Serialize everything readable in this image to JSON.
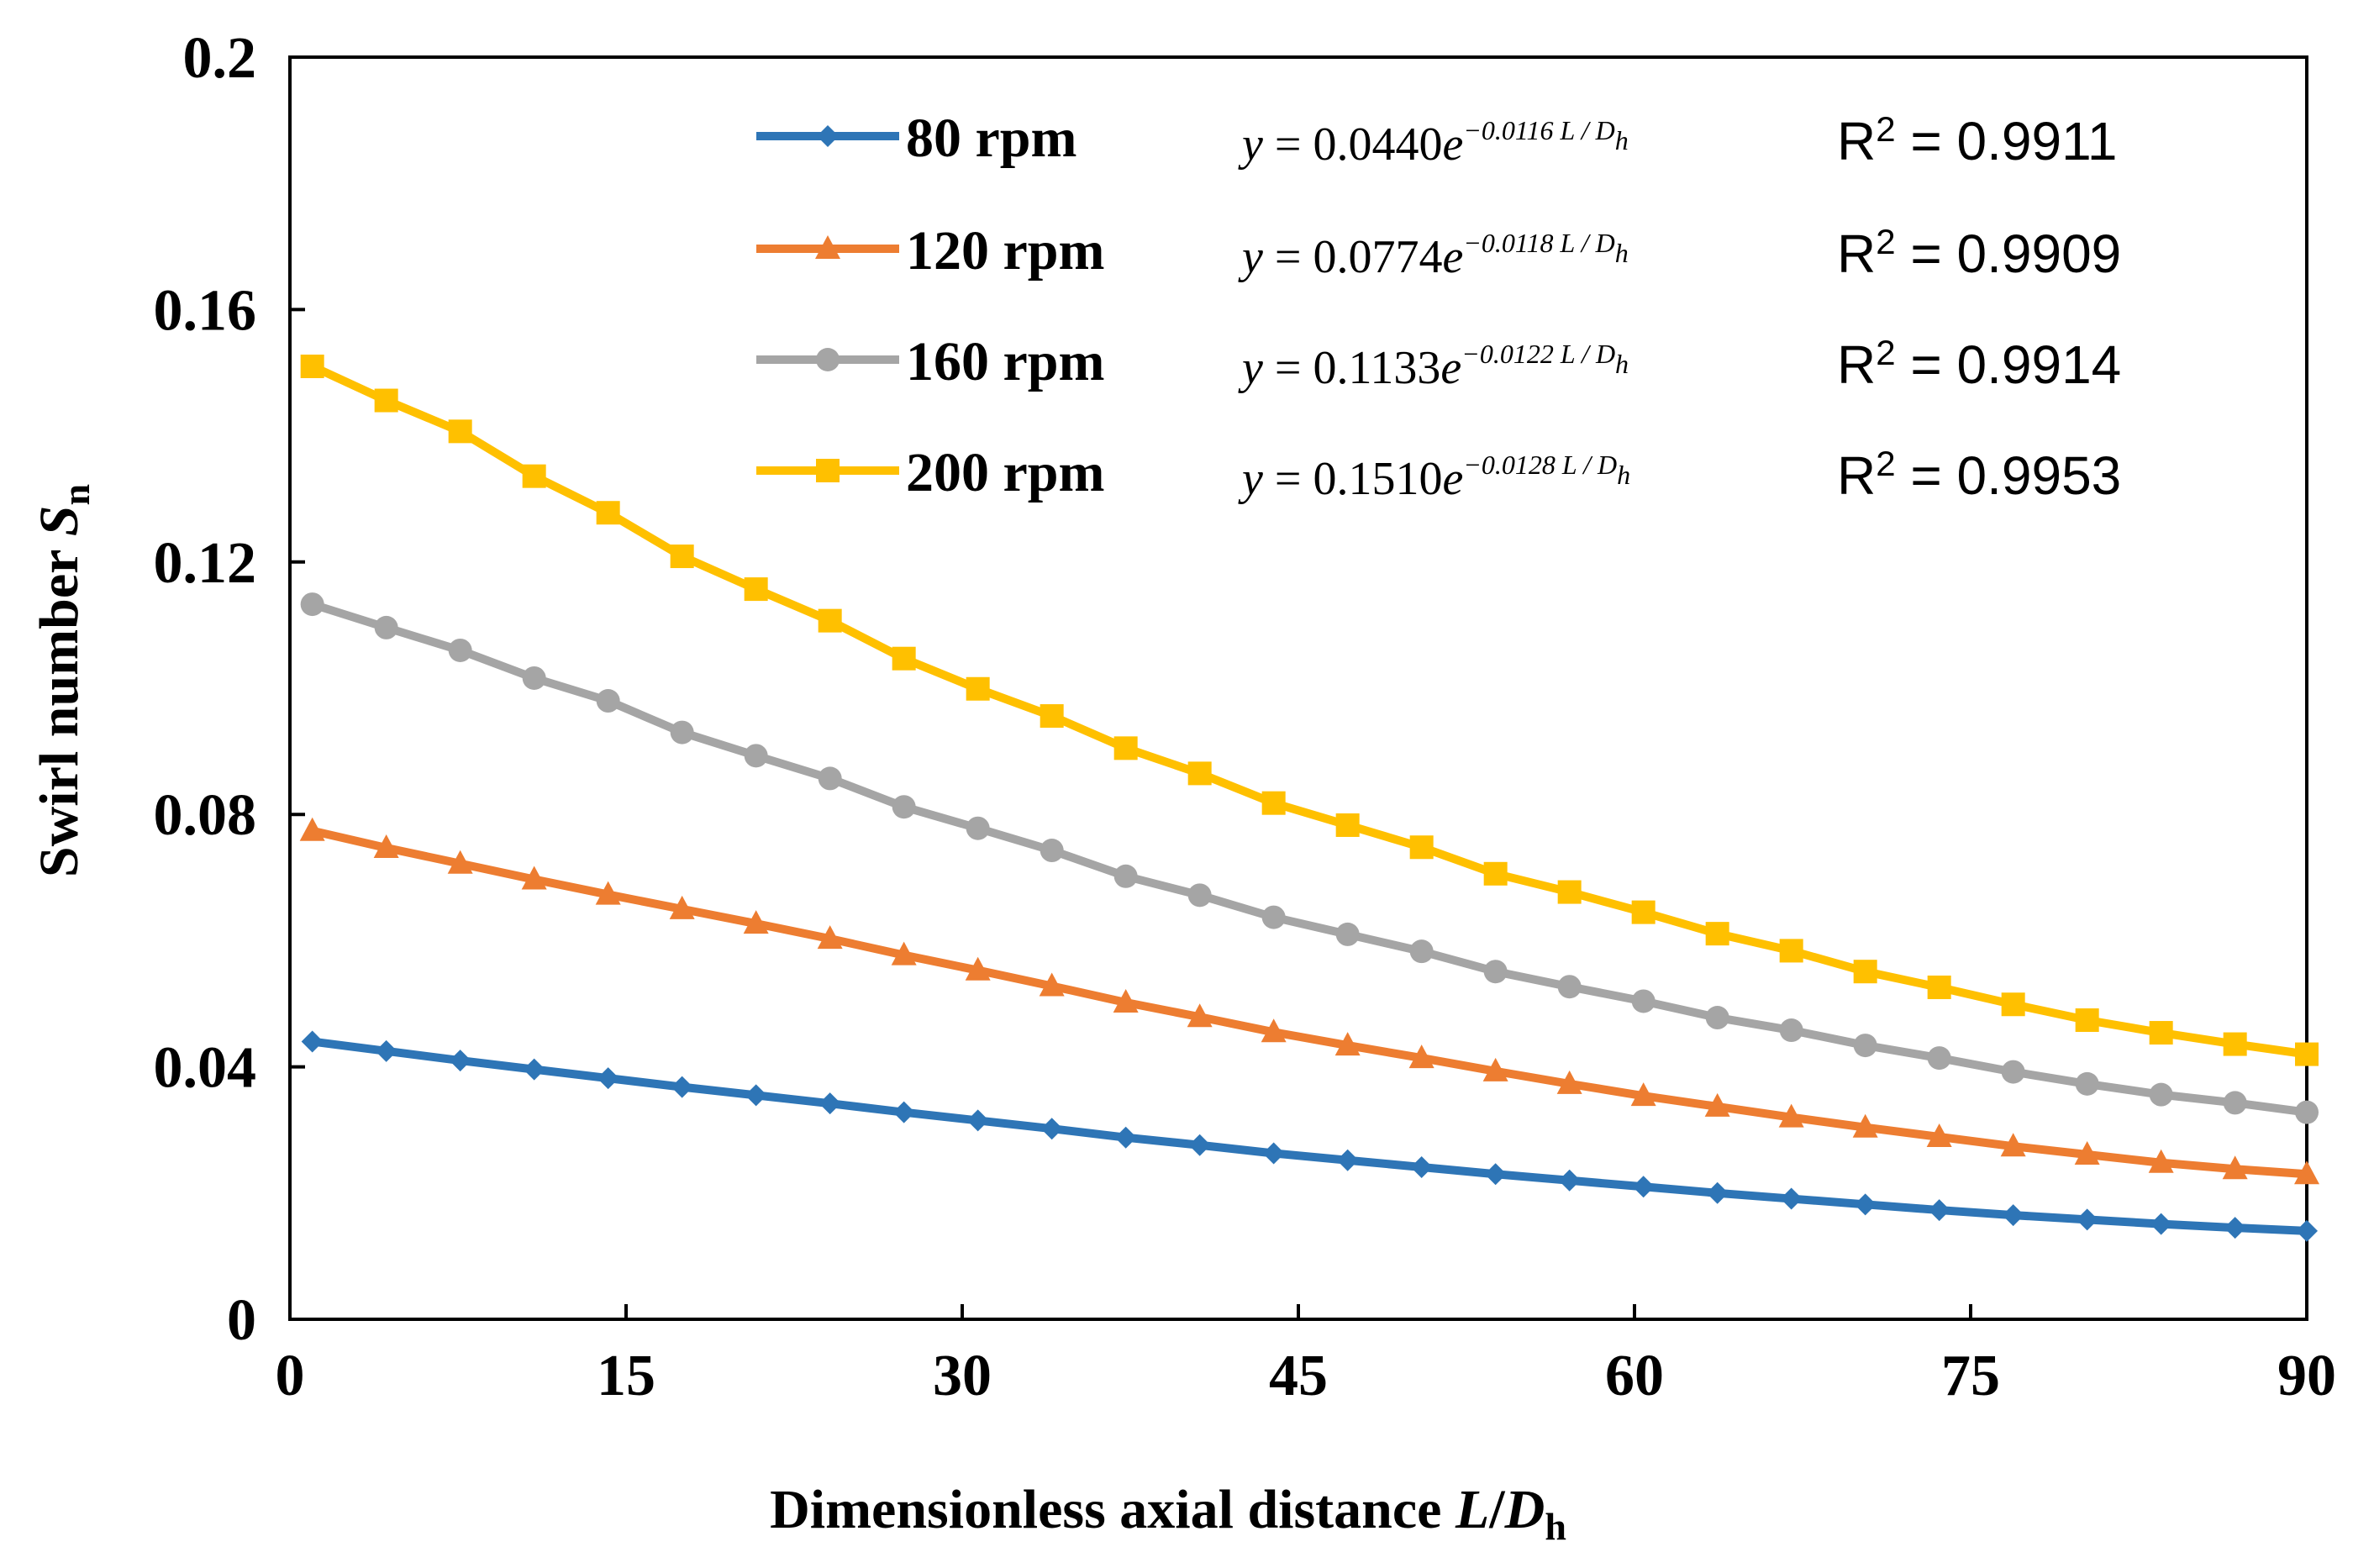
{
  "chart_data": {
    "type": "line",
    "xlabel": {
      "main": "Dimensionless axial distance ",
      "var": "L",
      "slash": "/",
      "var2": "D",
      "sub": "h"
    },
    "ylabel": {
      "main": "Swirl number ",
      "var": "S",
      "sub": "n"
    },
    "xlim": [
      0,
      90
    ],
    "ylim": [
      0,
      0.2
    ],
    "xticks": [
      "0",
      "15",
      "30",
      "45",
      "60",
      "75",
      "90"
    ],
    "yticks": [
      "0",
      "0.04",
      "0.08",
      "0.12",
      "0.16",
      "0.2"
    ],
    "x": [
      1,
      4.3,
      7.6,
      10.9,
      14.2,
      17.5,
      20.8,
      24.1,
      27.4,
      30.7,
      34,
      37.3,
      40.6,
      43.9,
      47.2,
      50.5,
      53.8,
      57.1,
      60.4,
      63.7,
      67,
      70.3,
      73.6,
      76.9,
      80.2,
      83.5,
      86.8,
      90
    ],
    "series": [
      {
        "name": "80 rpm",
        "color": "#2e75b6",
        "marker": "diamond",
        "values": [
          0.044,
          0.0425,
          0.041,
          0.0396,
          0.0382,
          0.0368,
          0.0355,
          0.0342,
          0.0328,
          0.0315,
          0.0302,
          0.0288,
          0.0276,
          0.0263,
          0.0252,
          0.0241,
          0.023,
          0.022,
          0.021,
          0.02,
          0.0191,
          0.0182,
          0.0173,
          0.0165,
          0.0158,
          0.0151,
          0.0145,
          0.014
        ],
        "eq": {
          "lead": "y",
          "eq": " = 0.0440",
          "base": "e",
          "exp": "−0.0116 L / D",
          "sub": "h"
        },
        "r2": {
          "r": "R",
          "sup": "2",
          "val": " = 0.9911"
        }
      },
      {
        "name": "120 rpm",
        "color": "#ed7d31",
        "marker": "triangle",
        "values": [
          0.0774,
          0.0747,
          0.0722,
          0.0697,
          0.0673,
          0.065,
          0.0627,
          0.0603,
          0.0577,
          0.0553,
          0.0528,
          0.0502,
          0.0479,
          0.0455,
          0.0434,
          0.0414,
          0.0393,
          0.0373,
          0.0354,
          0.0337,
          0.032,
          0.0304,
          0.0289,
          0.0274,
          0.0261,
          0.0248,
          0.0238,
          0.023
        ],
        "eq": {
          "lead": "y",
          "eq": " = 0.0774",
          "base": "e",
          "exp": "−0.0118 L / D",
          "sub": "h"
        },
        "r2": {
          "r": "R",
          "sup": "2",
          "val": " = 0.9909"
        }
      },
      {
        "name": "160 rpm",
        "color": "#a5a5a5",
        "marker": "circle",
        "values": [
          0.1133,
          0.1096,
          0.106,
          0.1016,
          0.098,
          0.093,
          0.0893,
          0.0857,
          0.0812,
          0.0778,
          0.0743,
          0.0702,
          0.0672,
          0.0637,
          0.061,
          0.0583,
          0.0551,
          0.0527,
          0.0504,
          0.0478,
          0.0458,
          0.0434,
          0.0414,
          0.0392,
          0.0373,
          0.0356,
          0.0343,
          0.0328
        ],
        "eq": {
          "lead": "y",
          "eq": " = 0.1133",
          "base": "e",
          "exp": "−0.0122 L / D",
          "sub": "h"
        },
        "r2": {
          "r": "R",
          "sup": "2",
          "val": " = 0.9914"
        }
      },
      {
        "name": "200 rpm",
        "color": "#ffc000",
        "marker": "square",
        "values": [
          0.151,
          0.1456,
          0.1407,
          0.1336,
          0.1278,
          0.1209,
          0.1157,
          0.1107,
          0.1047,
          0.0999,
          0.0956,
          0.0905,
          0.0865,
          0.0818,
          0.0783,
          0.0748,
          0.0706,
          0.0677,
          0.0645,
          0.0611,
          0.0584,
          0.0551,
          0.0526,
          0.0499,
          0.0474,
          0.0454,
          0.0436,
          0.042
        ],
        "eq": {
          "lead": "y",
          "eq": " = 0.1510",
          "base": "e",
          "exp": "−0.0128 L / D",
          "sub": "h"
        },
        "r2": {
          "r": "R",
          "sup": "2",
          "val": " = 0.9953"
        }
      }
    ]
  }
}
